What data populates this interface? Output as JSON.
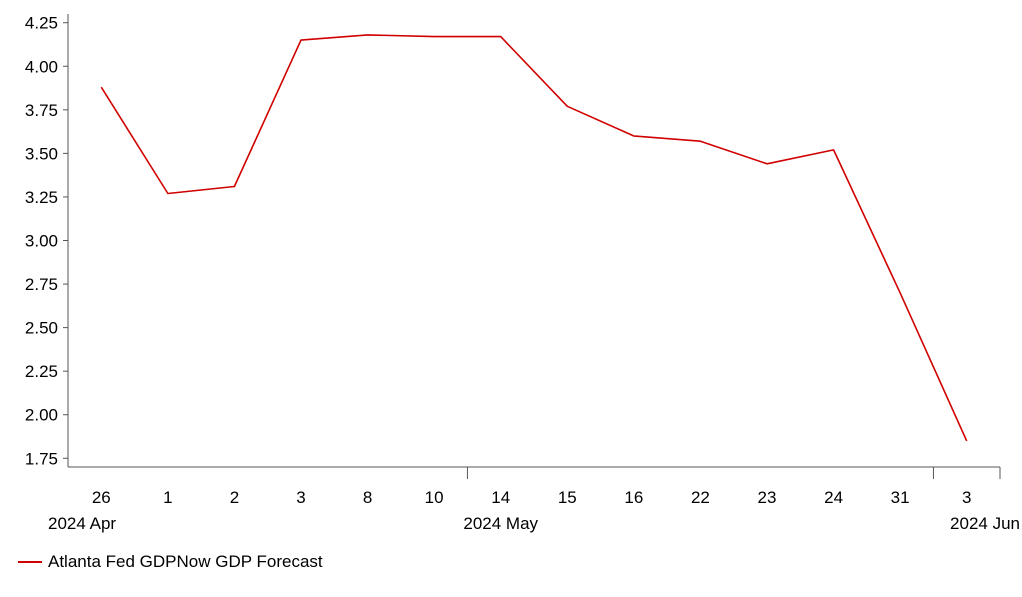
{
  "chart_data": {
    "type": "line",
    "categories": [
      "26",
      "1",
      "2",
      "3",
      "8",
      "10",
      "14",
      "15",
      "16",
      "22",
      "23",
      "24",
      "31",
      "3"
    ],
    "month_labels": [
      {
        "label": "2024 Apr",
        "category_index": 0
      },
      {
        "label": "2024 May",
        "category_index": 6
      },
      {
        "label": "2024 Jun",
        "category_index": 13
      }
    ],
    "series": [
      {
        "name": "Atlanta Fed GDPNow GDP Forecast",
        "color": "#d00000",
        "values": [
          3.88,
          3.27,
          3.31,
          4.15,
          4.18,
          4.17,
          4.17,
          3.77,
          3.6,
          3.57,
          3.44,
          3.52,
          2.7,
          1.85
        ]
      }
    ],
    "ylim": [
      1.7,
      4.3
    ],
    "yticks": [
      "4.25",
      "4.00",
      "3.75",
      "3.50",
      "3.25",
      "3.00",
      "2.75",
      "2.50",
      "2.25",
      "2.00",
      "1.75"
    ],
    "title": "",
    "xlabel": "",
    "ylabel": "",
    "grid": false,
    "legend_position": "bottom-left"
  }
}
